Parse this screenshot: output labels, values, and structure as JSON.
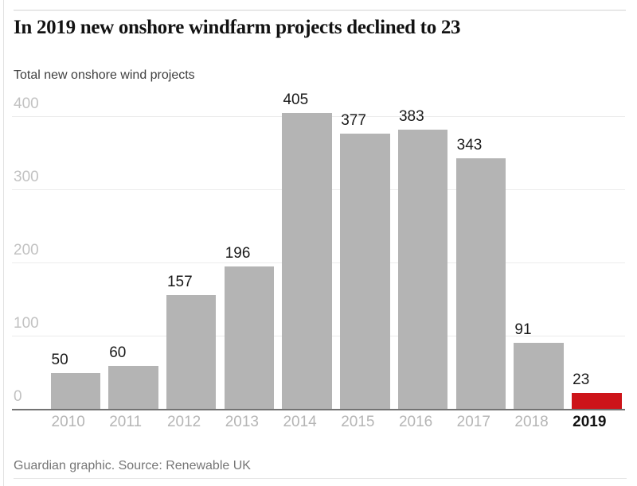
{
  "header": {
    "title": "In 2019 new onshore windfarm projects declined to 23",
    "subtitle": "Total new onshore wind projects"
  },
  "footer": {
    "source": "Guardian graphic. Source: Renewable UK"
  },
  "chart_data": {
    "type": "bar",
    "title": "In 2019 new onshore windfarm projects declined to 23",
    "subtitle": "Total new onshore wind projects",
    "categories": [
      "2010",
      "2011",
      "2012",
      "2013",
      "2014",
      "2015",
      "2016",
      "2017",
      "2018",
      "2019"
    ],
    "values": [
      50,
      60,
      157,
      196,
      405,
      377,
      383,
      343,
      91,
      23
    ],
    "value_labels_shown": true,
    "yticks": [
      0,
      100,
      200,
      300,
      400
    ],
    "ylim": [
      0,
      420
    ],
    "xlabel": "",
    "ylabel": "Total new onshore wind projects",
    "grid": true,
    "legend": false,
    "highlight": {
      "category": "2019",
      "index": 9,
      "value": 23
    },
    "colors": {
      "bar": "#b4b4b4",
      "highlight_bar": "#cd1419",
      "title": "#121212",
      "axis_tick_labels": "#c2c2c2",
      "x_tick_labels": "#b5b5b5",
      "highlight_tick_label": "#121212",
      "value_labels": "#1a1a1a",
      "baseline": "#737373",
      "gridline": "#ececec"
    },
    "source": "Guardian graphic. Source: Renewable UK"
  }
}
